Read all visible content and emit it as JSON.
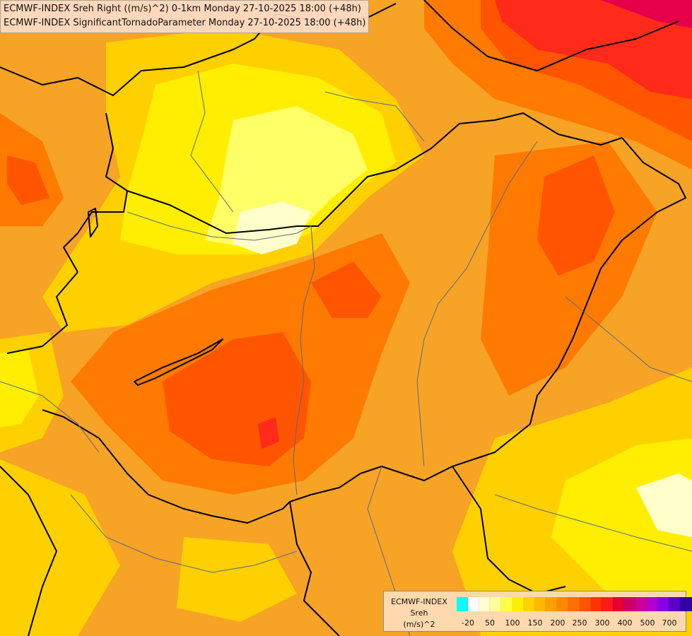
{
  "title": {
    "line1": "ECMWF-INDEX Sreh Right ((m/s)^2) 0-1km Monday 27-10-2025 18:00 (+48h)",
    "line2": "ECMWF-INDEX SignificantTornadoParameter Monday 27-10-2025 18:00 (+48h)"
  },
  "legend": {
    "source": "ECMWF-INDEX",
    "variable": "Sreh",
    "unit": "(m/s)^2",
    "colors": [
      "#00ffff",
      "#ffffff",
      "#ffffd0",
      "#ffff99",
      "#ffff44",
      "#ffee00",
      "#ffd200",
      "#ffba00",
      "#ffa000",
      "#ff8800",
      "#ff7000",
      "#ff5500",
      "#ff3300",
      "#ff1a1a",
      "#e60033",
      "#cc0066",
      "#cc0099",
      "#b300cc",
      "#8a00e6",
      "#5c00cc",
      "#3300aa",
      "#1a0080",
      "#0a0060"
    ],
    "ticks": [
      "-20",
      "50",
      "100",
      "150",
      "200",
      "250",
      "300",
      "400",
      "500",
      "700"
    ]
  },
  "map_colors": {
    "background": "#f7a326",
    "light_yellow": "#ffff66",
    "yellow": "#ffee00",
    "gold": "#ffd000",
    "orange": "#ffa800",
    "dark_orange": "#ff7a00",
    "red_orange": "#ff5500",
    "red": "#ff2a1a",
    "crimson": "#e6004a",
    "pale": "#ffffcc",
    "border": "#000000",
    "river": "#5a6a80"
  }
}
